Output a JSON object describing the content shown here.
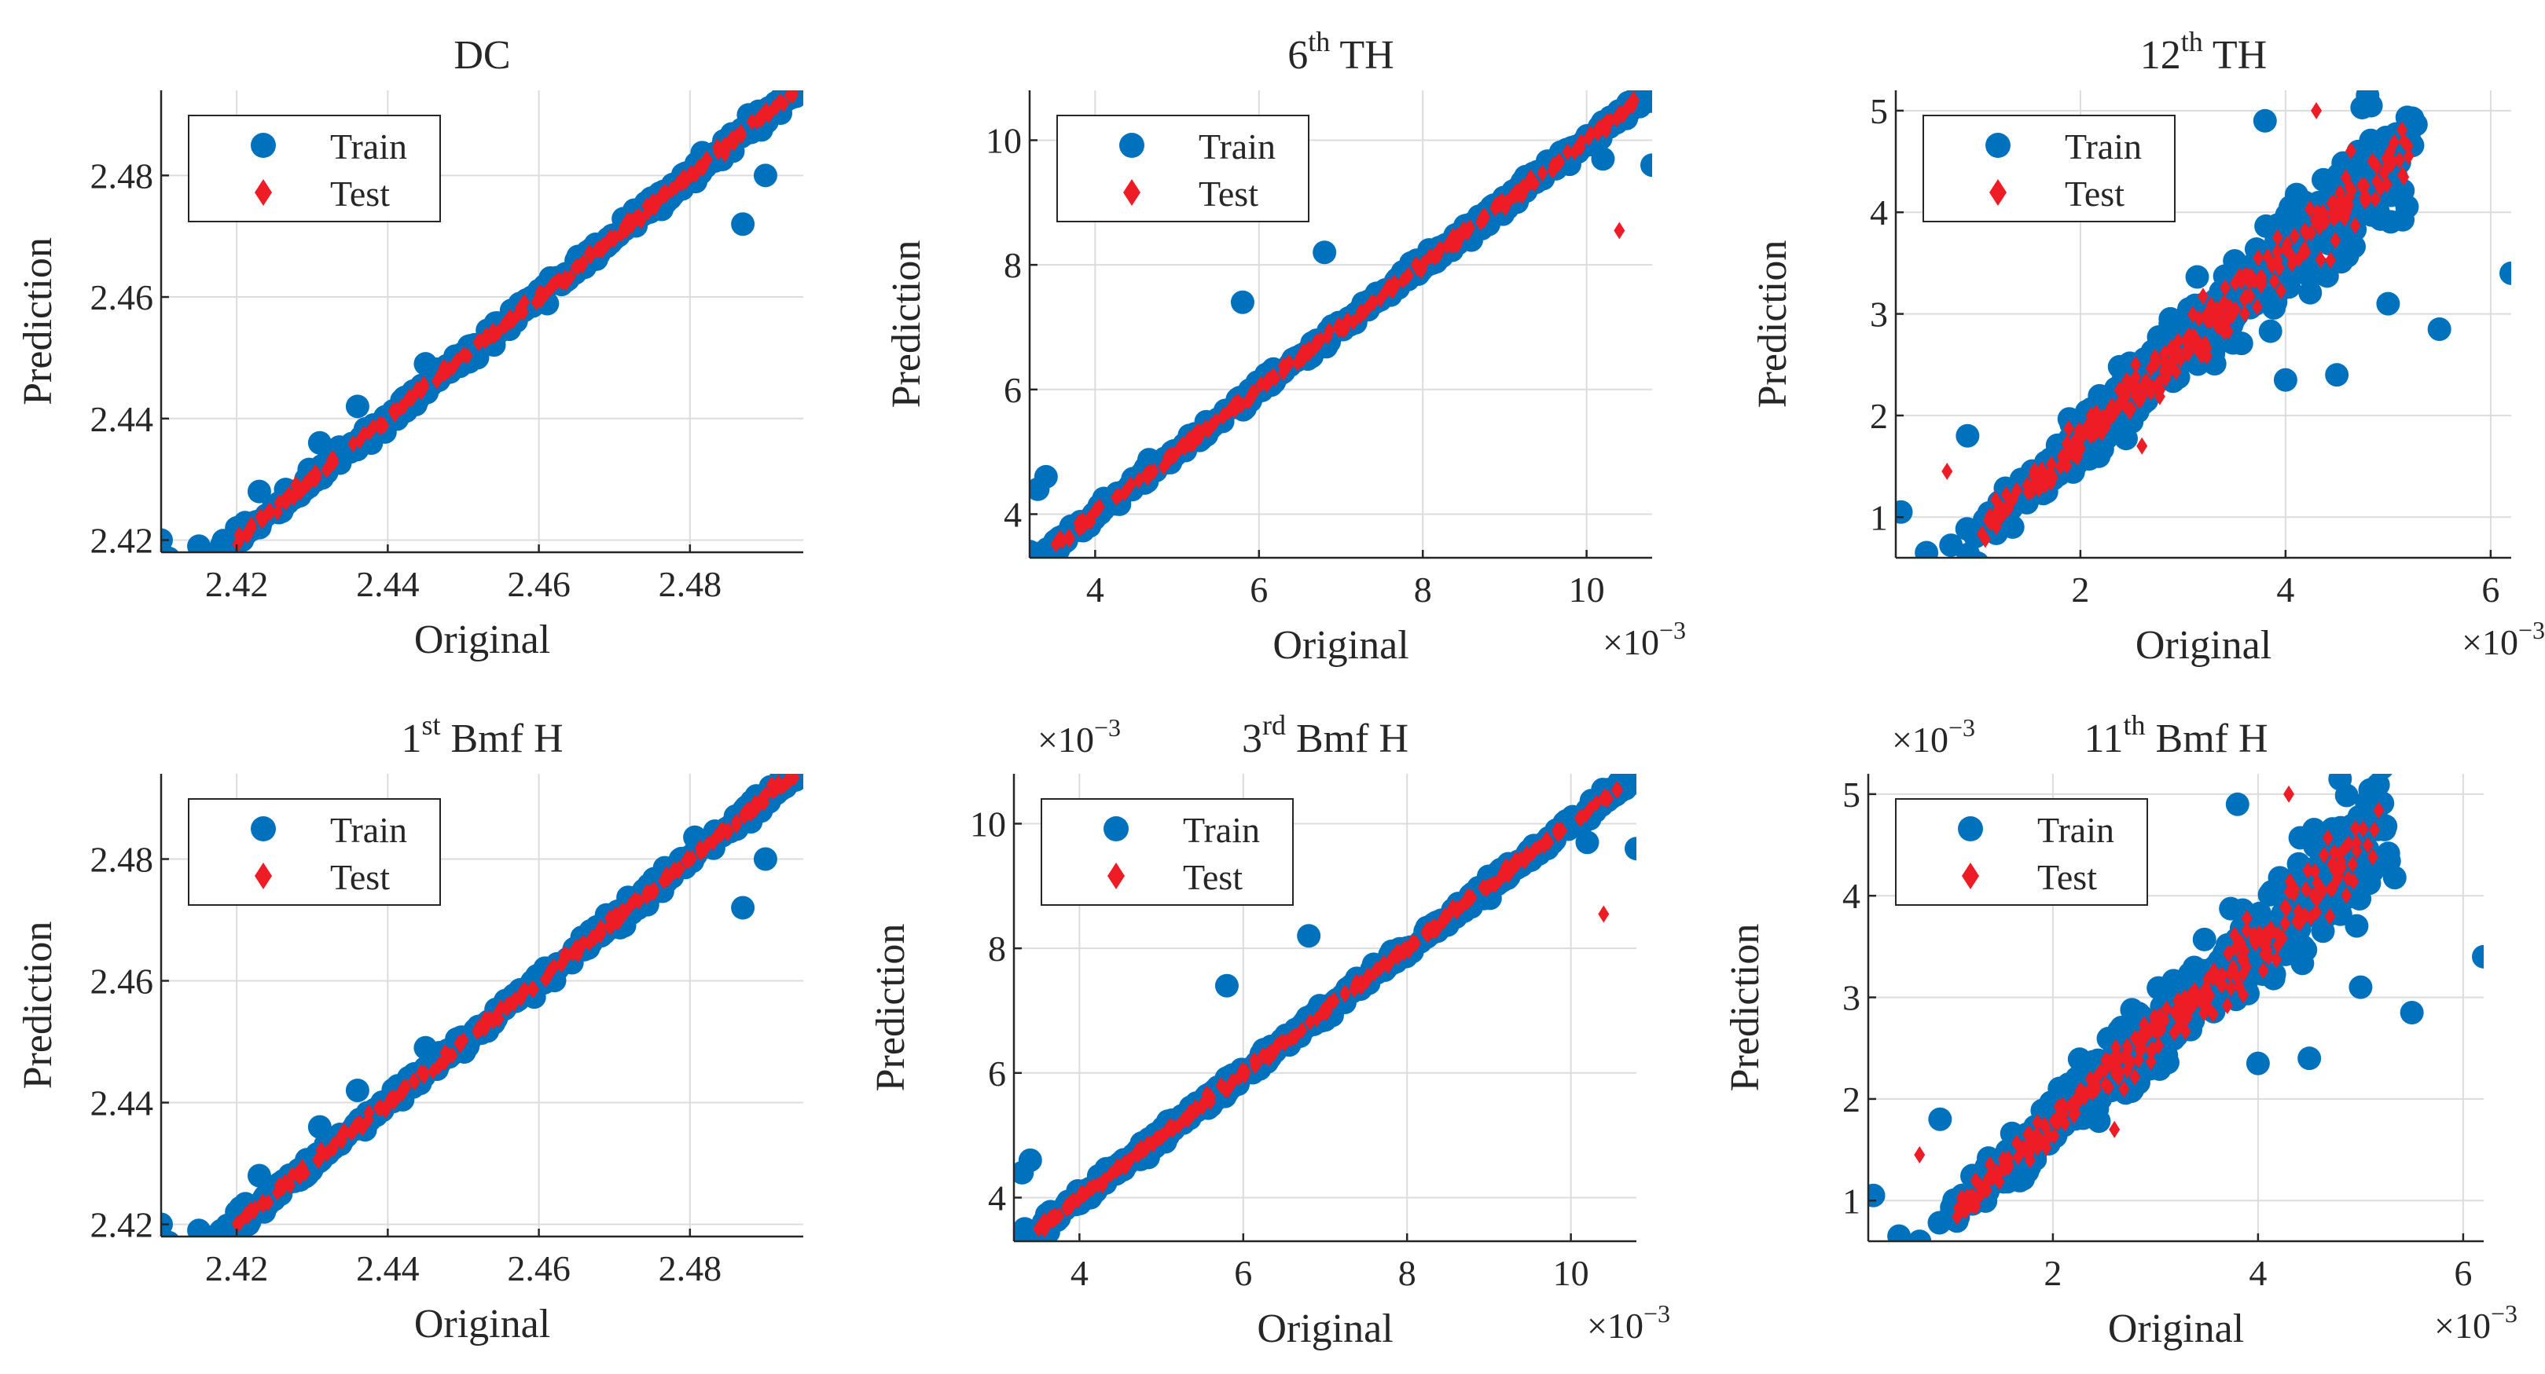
{
  "figure": {
    "legend": {
      "train_label": "Train",
      "test_label": "Test"
    },
    "xlabel": "Original",
    "ylabel": "Prediction",
    "exponent_label": "×10",
    "exponent_power": "−3"
  },
  "colors": {
    "train": "#0072BD",
    "test": "#EE1C25",
    "grid": "#dcdcdc",
    "axis": "#262626"
  },
  "chart_data": [
    {
      "type": "scatter",
      "title_main": "DC",
      "title_sup": "",
      "title_rest": "",
      "xlim": [
        2.41,
        2.495
      ],
      "ylim": [
        2.418,
        2.494
      ],
      "xticks": [
        2.42,
        2.44,
        2.46,
        2.48
      ],
      "xtick_labels": [
        "2.42",
        "2.44",
        "2.46",
        "2.48"
      ],
      "yticks": [
        2.42,
        2.44,
        2.46,
        2.48
      ],
      "ytick_labels": [
        "2.42",
        "2.44",
        "2.46",
        "2.48"
      ],
      "xlabel": "Original",
      "ylabel": "Prediction",
      "x_exponent": false,
      "y_exponent": false,
      "legend": [
        "Train",
        "Test"
      ],
      "series": [
        {
          "name": "Train",
          "marker": "circle",
          "trend": "y≈x",
          "x_range": [
            2.41,
            2.494
          ],
          "y_range": [
            2.417,
            2.493
          ],
          "points": [
            [
              2.41,
              2.42
            ],
            [
              2.411,
              2.417
            ],
            [
              2.415,
              2.419
            ],
            [
              2.418,
              2.418
            ],
            [
              2.42,
              2.422
            ],
            [
              2.423,
              2.428
            ],
            [
              2.431,
              2.436
            ],
            [
              2.436,
              2.442
            ],
            [
              2.445,
              2.449
            ],
            [
              2.487,
              2.472
            ],
            [
              2.49,
              2.48
            ],
            [
              2.494,
              2.493
            ]
          ]
        },
        {
          "name": "Test",
          "marker": "diamond",
          "trend": "y≈x",
          "x_range": [
            2.42,
            2.494
          ],
          "y_range": [
            2.42,
            2.489
          ]
        }
      ]
    },
    {
      "type": "scatter",
      "title_main": "6",
      "title_sup": "th",
      "title_rest": " TH",
      "xlim": [
        3.2,
        10.8
      ],
      "ylim": [
        3.3,
        10.8
      ],
      "xticks": [
        4,
        6,
        8,
        10
      ],
      "xtick_labels": [
        "4",
        "6",
        "8",
        "10"
      ],
      "yticks": [
        4,
        6,
        8,
        10
      ],
      "ytick_labels": [
        "4",
        "6",
        "8",
        "10"
      ],
      "xlabel": "Original",
      "ylabel": "Prediction",
      "x_exponent": true,
      "y_exponent": false,
      "legend": [
        "Train",
        "Test"
      ],
      "series": [
        {
          "name": "Train",
          "marker": "circle",
          "trend": "y≈x",
          "x_range": [
            3.2,
            10.8
          ],
          "y_range": [
            3.4,
            10.6
          ],
          "points": [
            [
              3.2,
              3.4
            ],
            [
              3.3,
              4.4
            ],
            [
              3.4,
              4.6
            ],
            [
              5.8,
              7.4
            ],
            [
              6.8,
              8.2
            ],
            [
              10.8,
              9.6
            ],
            [
              10.2,
              9.7
            ]
          ]
        },
        {
          "name": "Test",
          "marker": "diamond",
          "trend": "y≈x",
          "x_range": [
            3.5,
            10.6
          ],
          "y_range": [
            3.8,
            10.2
          ],
          "points": [
            [
              10.4,
              8.55
            ]
          ]
        }
      ]
    },
    {
      "type": "scatter",
      "title_main": "12",
      "title_sup": "th",
      "title_rest": " TH",
      "xlim": [
        0.2,
        6.2
      ],
      "ylim": [
        0.6,
        5.2
      ],
      "xticks": [
        2,
        4,
        6
      ],
      "xtick_labels": [
        "2",
        "4",
        "6"
      ],
      "yticks": [
        1,
        2,
        3,
        4,
        5
      ],
      "ytick_labels": [
        "1",
        "2",
        "3",
        "4",
        "5"
      ],
      "xlabel": "Original",
      "ylabel": "Prediction",
      "x_exponent": true,
      "y_exponent": false,
      "legend": [
        "Train",
        "Test"
      ],
      "series": [
        {
          "name": "Train",
          "marker": "circle",
          "trend": "y≈x with spread",
          "x_range": [
            0.2,
            6.2
          ],
          "y_range": [
            0.65,
            5.15
          ],
          "points": [
            [
              0.25,
              1.05
            ],
            [
              0.5,
              0.65
            ],
            [
              0.9,
              1.8
            ],
            [
              4.0,
              2.35
            ],
            [
              4.5,
              2.4
            ],
            [
              5.5,
              2.85
            ],
            [
              5.0,
              3.1
            ],
            [
              6.2,
              3.4
            ],
            [
              3.8,
              4.9
            ],
            [
              4.8,
              5.15
            ]
          ]
        },
        {
          "name": "Test",
          "marker": "diamond",
          "trend": "y≈x with spread",
          "x_range": [
            0.6,
            5.3
          ],
          "y_range": [
            0.7,
            5.05
          ],
          "points": [
            [
              0.7,
              1.45
            ],
            [
              2.6,
              1.7
            ],
            [
              4.3,
              5.0
            ]
          ]
        }
      ]
    },
    {
      "type": "scatter",
      "title_main": "1",
      "title_sup": "st",
      "title_rest": " Bmf H",
      "xlim": [
        2.41,
        2.495
      ],
      "ylim": [
        2.418,
        2.494
      ],
      "xticks": [
        2.42,
        2.44,
        2.46,
        2.48
      ],
      "xtick_labels": [
        "2.42",
        "2.44",
        "2.46",
        "2.48"
      ],
      "yticks": [
        2.42,
        2.44,
        2.46,
        2.48
      ],
      "ytick_labels": [
        "2.42",
        "2.44",
        "2.46",
        "2.48"
      ],
      "xlabel": "Original",
      "ylabel": "Prediction",
      "x_exponent": false,
      "y_exponent": false,
      "legend": [
        "Train",
        "Test"
      ],
      "series": [
        {
          "name": "Train",
          "marker": "circle",
          "trend": "y≈x",
          "x_range": [
            2.41,
            2.494
          ],
          "y_range": [
            2.417,
            2.493
          ],
          "points": [
            [
              2.41,
              2.42
            ],
            [
              2.411,
              2.417
            ],
            [
              2.415,
              2.419
            ],
            [
              2.418,
              2.418
            ],
            [
              2.42,
              2.422
            ],
            [
              2.423,
              2.428
            ],
            [
              2.431,
              2.436
            ],
            [
              2.436,
              2.442
            ],
            [
              2.445,
              2.449
            ],
            [
              2.487,
              2.472
            ],
            [
              2.49,
              2.48
            ],
            [
              2.494,
              2.493
            ]
          ]
        },
        {
          "name": "Test",
          "marker": "diamond",
          "trend": "y≈x",
          "x_range": [
            2.42,
            2.494
          ],
          "y_range": [
            2.42,
            2.489
          ]
        }
      ]
    },
    {
      "type": "scatter",
      "title_main": "3",
      "title_sup": "rd",
      "title_rest": " Bmf H",
      "xlim": [
        3.2,
        10.8
      ],
      "ylim": [
        3.3,
        10.8
      ],
      "xticks": [
        4,
        6,
        8,
        10
      ],
      "xtick_labels": [
        "4",
        "6",
        "8",
        "10"
      ],
      "yticks": [
        4,
        6,
        8,
        10
      ],
      "ytick_labels": [
        "4",
        "6",
        "8",
        "10"
      ],
      "xlabel": "Original",
      "ylabel": "Prediction",
      "x_exponent": true,
      "y_exponent": true,
      "legend": [
        "Train",
        "Test"
      ],
      "series": [
        {
          "name": "Train",
          "marker": "circle",
          "trend": "y≈x",
          "x_range": [
            3.2,
            10.8
          ],
          "y_range": [
            3.4,
            10.6
          ],
          "points": [
            [
              3.2,
              3.4
            ],
            [
              3.3,
              4.4
            ],
            [
              3.4,
              4.6
            ],
            [
              5.8,
              7.4
            ],
            [
              6.8,
              8.2
            ],
            [
              10.8,
              9.6
            ],
            [
              10.2,
              9.7
            ]
          ]
        },
        {
          "name": "Test",
          "marker": "diamond",
          "trend": "y≈x",
          "x_range": [
            3.5,
            10.6
          ],
          "y_range": [
            3.8,
            10.2
          ],
          "points": [
            [
              10.4,
              8.55
            ]
          ]
        }
      ]
    },
    {
      "type": "scatter",
      "title_main": "11",
      "title_sup": "th",
      "title_rest": " Bmf H",
      "xlim": [
        0.2,
        6.2
      ],
      "ylim": [
        0.6,
        5.2
      ],
      "xticks": [
        2,
        4,
        6
      ],
      "xtick_labels": [
        "2",
        "4",
        "6"
      ],
      "yticks": [
        1,
        2,
        3,
        4,
        5
      ],
      "ytick_labels": [
        "1",
        "2",
        "3",
        "4",
        "5"
      ],
      "xlabel": "Original",
      "ylabel": "Prediction",
      "x_exponent": true,
      "y_exponent": true,
      "legend": [
        "Train",
        "Test"
      ],
      "series": [
        {
          "name": "Train",
          "marker": "circle",
          "trend": "y≈x with spread",
          "x_range": [
            0.2,
            6.2
          ],
          "y_range": [
            0.65,
            5.15
          ],
          "points": [
            [
              0.25,
              1.05
            ],
            [
              0.5,
              0.65
            ],
            [
              0.9,
              1.8
            ],
            [
              4.0,
              2.35
            ],
            [
              4.5,
              2.4
            ],
            [
              5.5,
              2.85
            ],
            [
              5.0,
              3.1
            ],
            [
              6.2,
              3.4
            ],
            [
              3.8,
              4.9
            ],
            [
              4.8,
              5.15
            ]
          ]
        },
        {
          "name": "Test",
          "marker": "diamond",
          "trend": "y≈x with spread",
          "x_range": [
            0.6,
            5.3
          ],
          "y_range": [
            0.7,
            5.05
          ],
          "points": [
            [
              0.7,
              1.45
            ],
            [
              2.6,
              1.7
            ],
            [
              4.3,
              5.0
            ]
          ]
        }
      ]
    }
  ]
}
